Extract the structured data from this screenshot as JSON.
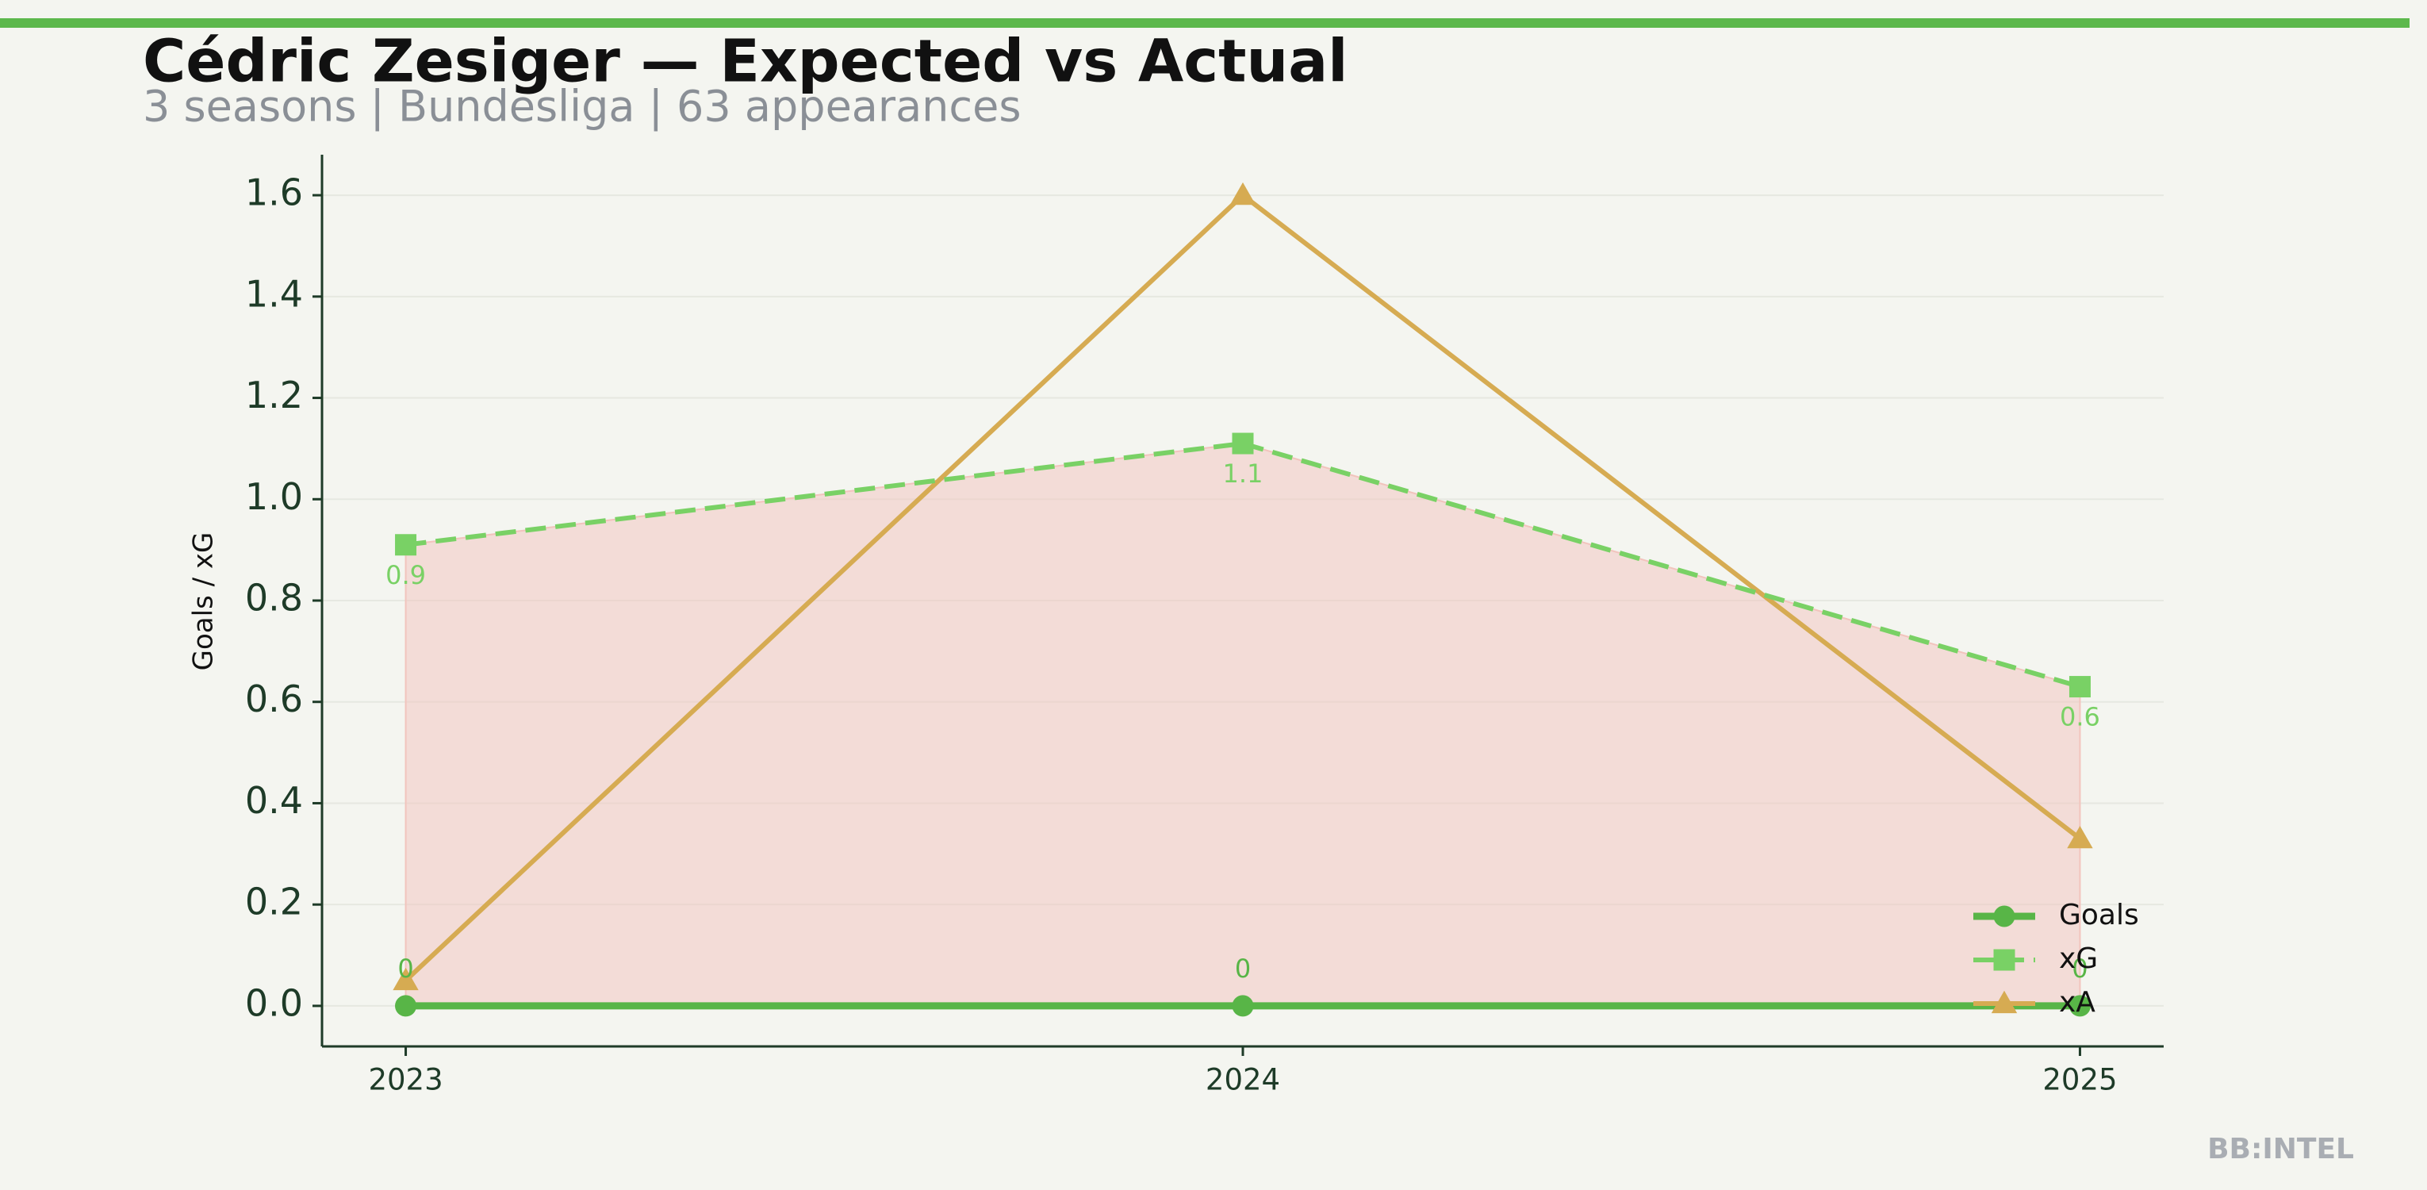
{
  "chart_data": {
    "type": "line",
    "title": "Cédric Zesiger — Expected vs Actual",
    "subtitle": "3 seasons | Bundesliga | 63 appearances",
    "ylabel": "Goals / xG",
    "watermark": "BB:INTEL",
    "x": [
      2023,
      2024,
      2025
    ],
    "xlim": [
      2022.9,
      2025.1
    ],
    "xticks": [
      2023,
      2024,
      2025
    ],
    "ylim": [
      -0.08,
      1.68
    ],
    "yticks": [
      {
        "value": 0,
        "label": "0.0"
      },
      {
        "value": 0.2,
        "label": "0.2"
      },
      {
        "value": 0.4,
        "label": "0.4"
      },
      {
        "value": 0.6,
        "label": "0.6"
      },
      {
        "value": 0.8,
        "label": "0.8"
      },
      {
        "value": 1,
        "label": "1.0"
      },
      {
        "value": 1.2,
        "label": "1.2"
      },
      {
        "value": 1.4,
        "label": "1.4"
      },
      {
        "value": 1.6,
        "label": "1.6"
      }
    ],
    "grid": true,
    "legend": "lower right",
    "fill_color": "#f2c4bd",
    "series": [
      {
        "name": "Goals",
        "color": "#58b547",
        "marker": "circle",
        "dash": false,
        "values": [
          0,
          0,
          0
        ]
      },
      {
        "name": "xG",
        "color": "#79d165",
        "marker": "square",
        "dash": true,
        "values": [
          0.91,
          1.11,
          0.63
        ],
        "value_labels": [
          "0.9",
          "1.1",
          "0.6"
        ]
      },
      {
        "name": "xA",
        "color": "#d6ab52",
        "marker": "triangle",
        "dash": false,
        "values": [
          0.05,
          1.6,
          0.33
        ]
      }
    ]
  }
}
